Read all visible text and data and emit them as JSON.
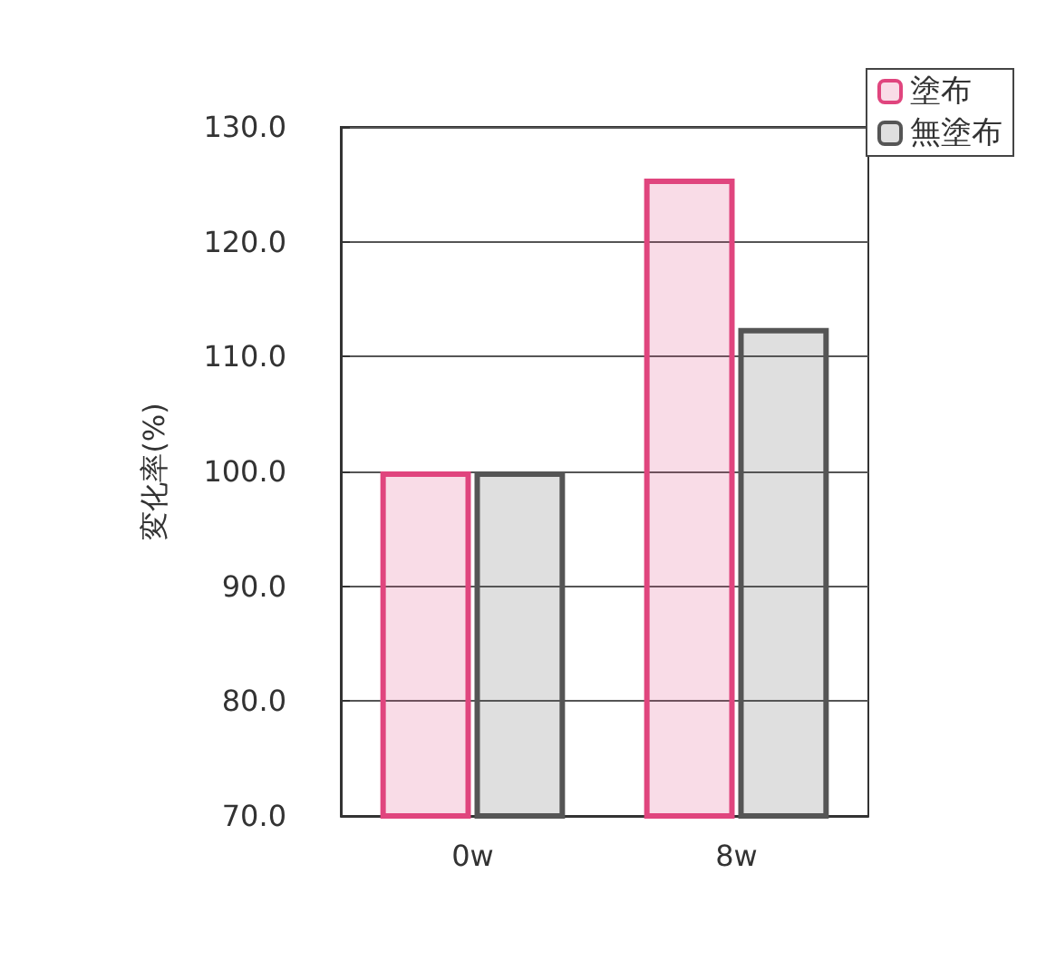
{
  "chart_data": {
    "type": "bar",
    "ylabel": "変化率(%)",
    "categories": [
      "0w",
      "8w"
    ],
    "series": [
      {
        "name": "塗布",
        "color": "#e0457e",
        "values": [
          100,
          125.5
        ]
      },
      {
        "name": "無塗布",
        "color": "#555555",
        "values": [
          100,
          112.5
        ]
      }
    ],
    "ylim": [
      70,
      130
    ],
    "yticks": [
      {
        "value": 70,
        "label": "70.0"
      },
      {
        "value": 80,
        "label": "80.0"
      },
      {
        "value": 90,
        "label": "90.0"
      },
      {
        "value": 100,
        "label": "100.0"
      },
      {
        "value": 110,
        "label": "110.0"
      },
      {
        "value": 120,
        "label": "120.0"
      },
      {
        "value": 130,
        "label": "130.0"
      }
    ],
    "grid": "y",
    "legend": "top right"
  }
}
